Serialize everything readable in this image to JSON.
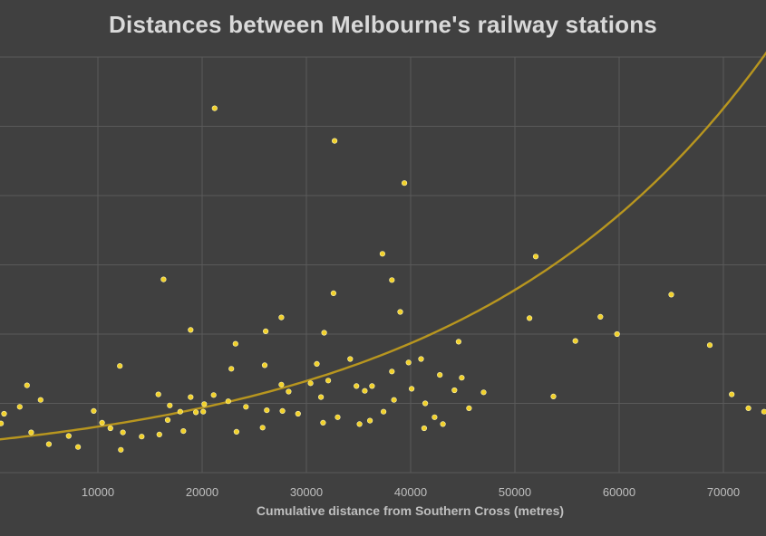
{
  "chart_data": {
    "type": "scatter",
    "title": "Distances between Melbourne's railway stations",
    "xlabel": "Cumulative distance from Southern Cross (metres)",
    "ylabel": "",
    "xlim": [
      0,
      74000
    ],
    "ylim": [
      0,
      6000
    ],
    "x_ticks": [
      10000,
      20000,
      30000,
      40000,
      50000,
      60000,
      70000
    ],
    "y_gridlines": [
      0,
      1000,
      2000,
      3000,
      4000,
      5000,
      6000
    ],
    "grid": true,
    "colors": {
      "background": "#404040",
      "points": "#f2d12a",
      "trendline": "#b8961f",
      "grid": "#5a5a5a"
    },
    "trendline": {
      "type": "exponential",
      "a": 470,
      "b": 3.45e-05
    },
    "points": [
      [
        21200,
        5260
      ],
      [
        32700,
        4790
      ],
      [
        39400,
        4180
      ],
      [
        37300,
        3160
      ],
      [
        52000,
        3120
      ],
      [
        16300,
        2790
      ],
      [
        38200,
        2780
      ],
      [
        32600,
        2590
      ],
      [
        65000,
        2570
      ],
      [
        39000,
        2320
      ],
      [
        27600,
        2240
      ],
      [
        51400,
        2230
      ],
      [
        58200,
        2250
      ],
      [
        18900,
        2060
      ],
      [
        26100,
        2040
      ],
      [
        31700,
        2020
      ],
      [
        55800,
        1900
      ],
      [
        59800,
        2000
      ],
      [
        23200,
        1860
      ],
      [
        44600,
        1890
      ],
      [
        68700,
        1840
      ],
      [
        34200,
        1640
      ],
      [
        41000,
        1640
      ],
      [
        39800,
        1590
      ],
      [
        12100,
        1540
      ],
      [
        26000,
        1550
      ],
      [
        31000,
        1570
      ],
      [
        22800,
        1500
      ],
      [
        38200,
        1460
      ],
      [
        34800,
        1250
      ],
      [
        36300,
        1250
      ],
      [
        30400,
        1290
      ],
      [
        32100,
        1330
      ],
      [
        44900,
        1370
      ],
      [
        42800,
        1410
      ],
      [
        44200,
        1190
      ],
      [
        47000,
        1160
      ],
      [
        40100,
        1210
      ],
      [
        35600,
        1180
      ],
      [
        3200,
        1260
      ],
      [
        27600,
        1270
      ],
      [
        28300,
        1170
      ],
      [
        15800,
        1130
      ],
      [
        22500,
        1030
      ],
      [
        18900,
        1090
      ],
      [
        21100,
        1120
      ],
      [
        20200,
        990
      ],
      [
        24200,
        950
      ],
      [
        31400,
        1090
      ],
      [
        41400,
        1000
      ],
      [
        53700,
        1100
      ],
      [
        70800,
        1130
      ],
      [
        72400,
        930
      ],
      [
        45600,
        930
      ],
      [
        26200,
        900
      ],
      [
        27700,
        890
      ],
      [
        29200,
        850
      ],
      [
        33000,
        800
      ],
      [
        36100,
        750
      ],
      [
        37400,
        880
      ],
      [
        38400,
        1050
      ],
      [
        42300,
        800
      ],
      [
        41300,
        640
      ],
      [
        43100,
        700
      ],
      [
        23300,
        590
      ],
      [
        25800,
        650
      ],
      [
        35100,
        700
      ],
      [
        31600,
        720
      ],
      [
        73900,
        880
      ],
      [
        12400,
        580
      ],
      [
        15900,
        550
      ],
      [
        4500,
        1050
      ],
      [
        2500,
        950
      ],
      [
        1000,
        850
      ],
      [
        700,
        710
      ],
      [
        3600,
        580
      ],
      [
        7200,
        530
      ],
      [
        11200,
        640
      ],
      [
        16700,
        760
      ],
      [
        19400,
        870
      ],
      [
        20100,
        880
      ],
      [
        18200,
        600
      ],
      [
        14200,
        520
      ],
      [
        12200,
        330
      ],
      [
        8100,
        370
      ],
      [
        5300,
        410
      ],
      [
        9600,
        890
      ],
      [
        16900,
        970
      ],
      [
        17900,
        880
      ],
      [
        10400,
        720
      ]
    ]
  }
}
